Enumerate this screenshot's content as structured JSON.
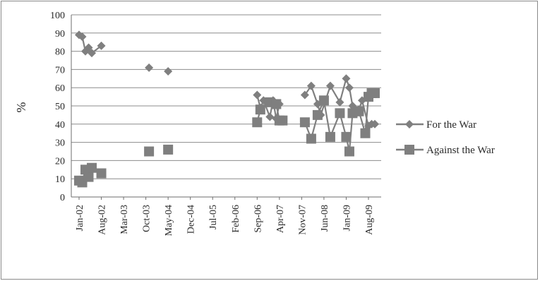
{
  "chart_data": {
    "type": "scatter",
    "ylabel": "%",
    "xlabel": "",
    "ylim": [
      0,
      100
    ],
    "yticks": [
      0,
      10,
      20,
      30,
      40,
      50,
      60,
      70,
      80,
      90,
      100
    ],
    "x_tick_labels": [
      "Jan-02",
      "Aug-02",
      "Mar-03",
      "Oct-03",
      "May-04",
      "Dec-04",
      "Jul-05",
      "Feb-06",
      "Sep-06",
      "Apr-07",
      "Nov-07",
      "Jun-08",
      "Jan-09",
      "Aug-09"
    ],
    "x_unit": "month",
    "xlim": [
      "2002-01",
      "2009-10"
    ],
    "grid": "horizontal",
    "legend_position": "right",
    "series": [
      {
        "name": "For the War",
        "marker": "diamond",
        "color": "#7f7f7f",
        "points": [
          [
            "2002-01",
            89
          ],
          [
            "2002-02",
            88
          ],
          [
            "2002-03",
            80
          ],
          [
            "2002-04",
            82
          ],
          [
            "2002-05",
            79
          ],
          [
            "2002-08",
            83
          ],
          [
            "2003-11",
            71
          ],
          [
            "2004-05",
            69
          ],
          [
            "2006-09",
            56
          ],
          [
            "2006-10",
            49
          ],
          [
            "2006-11",
            53
          ],
          [
            "2007-01",
            44
          ],
          [
            "2007-02",
            53
          ],
          [
            "2007-03",
            43
          ],
          [
            "2007-04",
            51
          ],
          [
            "2007-12",
            56
          ],
          [
            "2008-02",
            61
          ],
          [
            "2008-04",
            51
          ],
          [
            "2008-05",
            45
          ],
          [
            "2008-08",
            61
          ],
          [
            "2008-11",
            52
          ],
          [
            "2009-01",
            65
          ],
          [
            "2009-02",
            60
          ],
          [
            "2009-03",
            50
          ],
          [
            "2009-05",
            48
          ],
          [
            "2009-06",
            53
          ],
          [
            "2009-08",
            39
          ],
          [
            "2009-09",
            40
          ],
          [
            "2009-10",
            40
          ]
        ]
      },
      {
        "name": "Against the War",
        "marker": "square",
        "color": "#7f7f7f",
        "points": [
          [
            "2002-01",
            9
          ],
          [
            "2002-02",
            8
          ],
          [
            "2002-03",
            15
          ],
          [
            "2002-04",
            11
          ],
          [
            "2002-05",
            16
          ],
          [
            "2002-08",
            13
          ],
          [
            "2003-11",
            25
          ],
          [
            "2004-05",
            26
          ],
          [
            "2006-09",
            41
          ],
          [
            "2006-10",
            48
          ],
          [
            "2007-01",
            52
          ],
          [
            "2007-03",
            51
          ],
          [
            "2007-04",
            42
          ],
          [
            "2007-05",
            42
          ],
          [
            "2007-12",
            41
          ],
          [
            "2008-02",
            32
          ],
          [
            "2008-04",
            45
          ],
          [
            "2008-06",
            53
          ],
          [
            "2008-08",
            33
          ],
          [
            "2008-11",
            46
          ],
          [
            "2009-01",
            33
          ],
          [
            "2009-02",
            25
          ],
          [
            "2009-03",
            46
          ],
          [
            "2009-05",
            47
          ],
          [
            "2009-07",
            35
          ],
          [
            "2009-08",
            55
          ],
          [
            "2009-09",
            57
          ],
          [
            "2009-10",
            57
          ]
        ]
      }
    ]
  }
}
